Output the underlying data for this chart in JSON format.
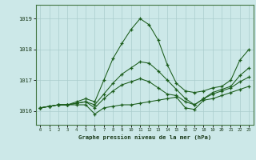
{
  "title": "Graphe pression niveau de la mer (hPa)",
  "bg_color": "#cce8e8",
  "line_color": "#1a5c1a",
  "grid_color": "#aacccc",
  "hours": [
    0,
    1,
    2,
    3,
    4,
    5,
    6,
    7,
    8,
    9,
    10,
    11,
    12,
    13,
    14,
    15,
    16,
    17,
    18,
    19,
    20,
    21,
    22,
    23
  ],
  "series_1": [
    1016.1,
    1016.15,
    1016.2,
    1016.2,
    1016.3,
    1016.4,
    1016.3,
    1017.0,
    1017.7,
    1018.2,
    1018.65,
    1019.0,
    1018.8,
    1018.3,
    1017.5,
    1016.9,
    1016.65,
    1016.6,
    1016.65,
    1016.75,
    1016.8,
    1017.0,
    1017.65,
    1018.0
  ],
  "series_2": [
    1016.1,
    1016.15,
    1016.2,
    1016.2,
    1016.2,
    1016.2,
    1015.9,
    1016.1,
    1016.15,
    1016.2,
    1016.2,
    1016.25,
    1016.3,
    1016.35,
    1016.4,
    1016.45,
    1016.1,
    1016.05,
    1016.35,
    1016.4,
    1016.5,
    1016.6,
    1016.7,
    1016.8
  ],
  "series_3": [
    1016.1,
    1016.15,
    1016.2,
    1016.2,
    1016.25,
    1016.3,
    1016.1,
    1016.4,
    1016.65,
    1016.85,
    1016.95,
    1017.05,
    1016.95,
    1016.75,
    1016.55,
    1016.5,
    1016.3,
    1016.2,
    1016.4,
    1016.55,
    1016.65,
    1016.75,
    1016.95,
    1017.1
  ],
  "series_4": [
    1016.1,
    1016.15,
    1016.2,
    1016.2,
    1016.25,
    1016.3,
    1016.2,
    1016.55,
    1016.9,
    1017.2,
    1017.4,
    1017.6,
    1017.55,
    1017.3,
    1017.0,
    1016.7,
    1016.4,
    1016.2,
    1016.4,
    1016.6,
    1016.7,
    1016.8,
    1017.15,
    1017.4
  ],
  "ylim": [
    1015.55,
    1019.45
  ],
  "yticks": [
    1016,
    1017,
    1018,
    1019
  ],
  "xlim": [
    -0.5,
    23.5
  ],
  "xticks": [
    0,
    1,
    2,
    3,
    4,
    5,
    6,
    7,
    8,
    9,
    10,
    11,
    12,
    13,
    14,
    15,
    16,
    17,
    18,
    19,
    20,
    21,
    22,
    23
  ]
}
